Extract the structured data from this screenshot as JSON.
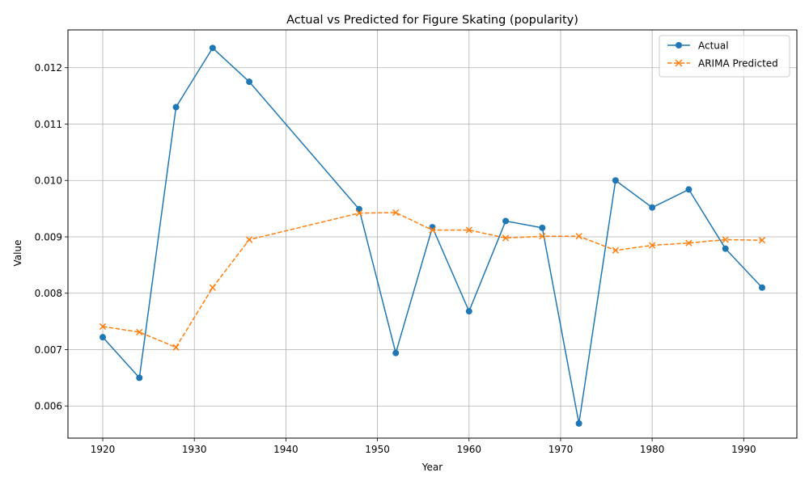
{
  "chart_data": {
    "type": "line",
    "title": "Actual vs Predicted for Figure Skating (popularity)",
    "xlabel": "Year",
    "ylabel": "Value",
    "xlim": [
      1916.2,
      1995.8
    ],
    "ylim": [
      0.00543,
      0.01267
    ],
    "xticks": [
      "1920",
      "1930",
      "1940",
      "1950",
      "1960",
      "1970",
      "1980",
      "1990"
    ],
    "yticks": [
      "0.006",
      "0.007",
      "0.008",
      "0.009",
      "0.010",
      "0.011",
      "0.012"
    ],
    "grid": true,
    "legend_position": "top-right",
    "x": [
      1920,
      1924,
      1928,
      1932,
      1936,
      1948,
      1952,
      1956,
      1960,
      1964,
      1968,
      1972,
      1976,
      1980,
      1984,
      1988,
      1992
    ],
    "series": [
      {
        "name": "Actual",
        "color": "#1f77b4",
        "line_style": "solid",
        "marker": "circle",
        "values": [
          0.00722,
          0.0065,
          0.0113,
          0.01235,
          0.01175,
          0.00949,
          0.00694,
          0.00917,
          0.00768,
          0.00928,
          0.00916,
          0.00569,
          0.01,
          0.00952,
          0.00984,
          0.00879,
          0.0081
        ]
      },
      {
        "name": "ARIMA Predicted",
        "color": "#ff7f0e",
        "line_style": "dashed",
        "marker": "x",
        "values": [
          0.00741,
          0.00731,
          0.00704,
          0.0081,
          0.00895,
          0.00942,
          0.00943,
          0.00912,
          0.00912,
          0.00898,
          0.00901,
          0.00901,
          0.00876,
          0.00885,
          0.00889,
          0.00895,
          0.00894
        ]
      }
    ]
  }
}
